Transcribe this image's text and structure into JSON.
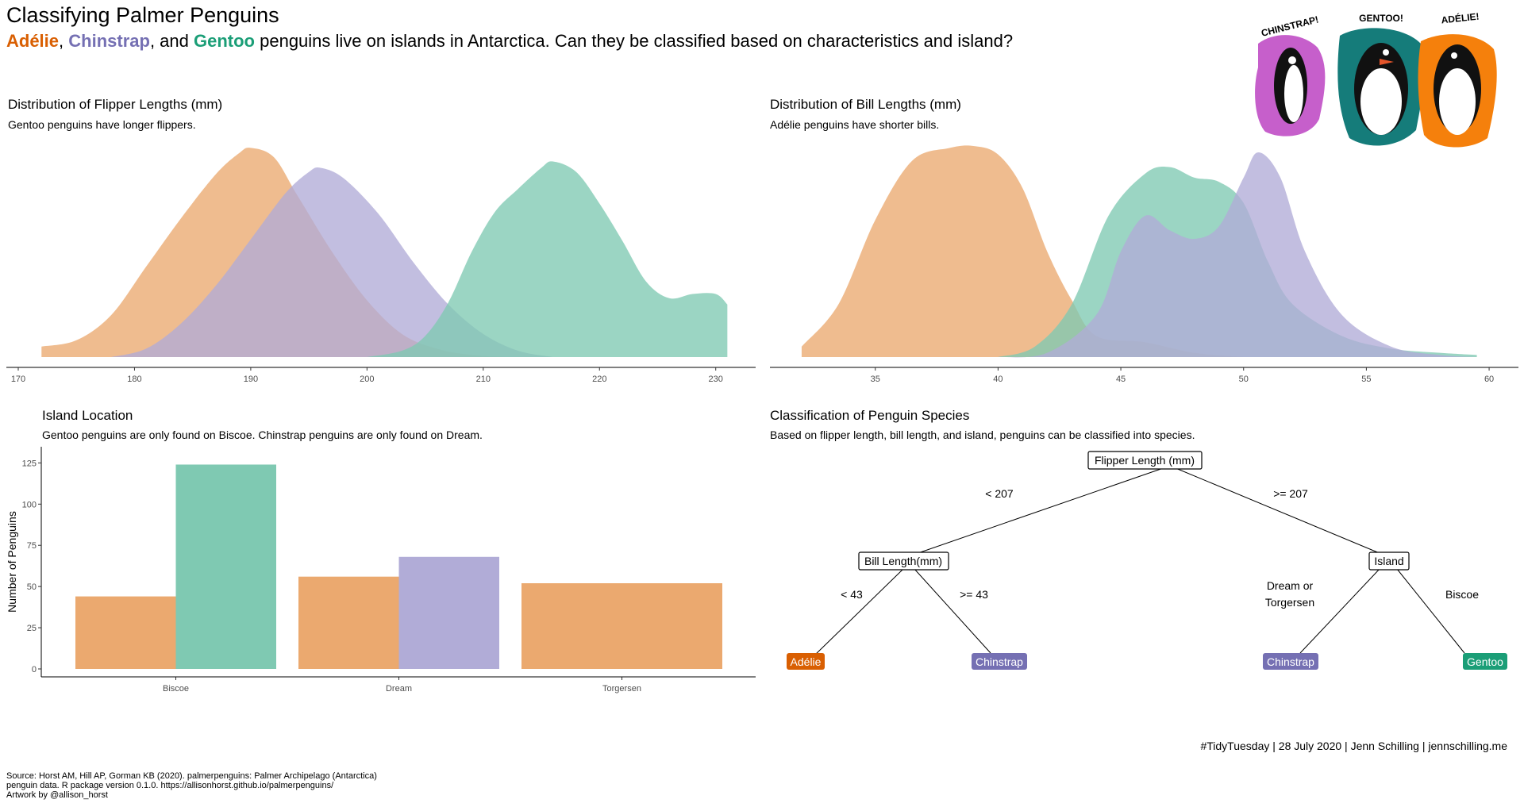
{
  "title": "Classifying Palmer Penguins",
  "subtitle": {
    "adelie": "Adélie",
    "sep1": ", ",
    "chinstrap": "Chinstrap",
    "sep2": ", and ",
    "gentoo": "Gentoo",
    "rest": " penguins live on islands in Antarctica. Can they be classified based on characteristics and island?"
  },
  "colors": {
    "adelie": "#d95f02",
    "chinstrap": "#7570b3",
    "gentoo": "#1b9e77",
    "adelie_fill": "#eba96f",
    "chinstrap_fill": "#b1acd7",
    "gentoo_fill": "#7fc9b2"
  },
  "artwork": {
    "labels": [
      "CHINSTRAP!",
      "GENTOO!",
      "ADÉLIE!"
    ]
  },
  "credit": "#TidyTuesday | 28 July 2020 | Jenn Schilling | jennschilling.me",
  "source": [
    "Source: Horst AM, Hill AP, Gorman KB (2020). palmerpenguins: Palmer Archipelago (Antarctica)",
    "penguin data. R package version 0.1.0. https://allisonhorst.github.io/palmerpenguins/",
    "Artwork by @allison_horst"
  ],
  "tree": {
    "title": "Classification of Penguin Species",
    "subtitle": "Based on flipper length, bill length, and island, penguins can be classified into species.",
    "root": "Flipper Length (mm)",
    "left_node": "Bill Length(mm)",
    "right_node": "Island",
    "edge_root_left": "< 207",
    "edge_root_right": ">= 207",
    "edge_left_left": "< 43",
    "edge_left_right": ">= 43",
    "edge_right_left_1": "Dream or",
    "edge_right_left_2": "Torgersen",
    "edge_right_right": "Biscoe",
    "leaf_1": "Adélie",
    "leaf_2": "Chinstrap",
    "leaf_3": "Chinstrap",
    "leaf_4": "Gentoo"
  },
  "chart_data": [
    {
      "type": "area",
      "title": "Distribution of Flipper Lengths (mm)",
      "subtitle": "Gentoo penguins have longer flippers.",
      "xlim": [
        170,
        232
      ],
      "ylim": [
        0,
        1
      ],
      "x_ticks": [
        170,
        180,
        190,
        200,
        210,
        220,
        230
      ],
      "series": [
        {
          "key": "adelie",
          "x": [
            172,
            175,
            178,
            181,
            184,
            187,
            189,
            190,
            192,
            194,
            197,
            200,
            203,
            206,
            209,
            212
          ],
          "values": [
            0.05,
            0.08,
            0.2,
            0.43,
            0.66,
            0.87,
            0.97,
            0.995,
            0.95,
            0.77,
            0.5,
            0.27,
            0.11,
            0.04,
            0.01,
            0
          ]
        },
        {
          "key": "chinstrap",
          "x": [
            178,
            181,
            184,
            187,
            190,
            193,
            195,
            196,
            198,
            201,
            204,
            207,
            210,
            213,
            216
          ],
          "values": [
            0,
            0.04,
            0.16,
            0.34,
            0.56,
            0.78,
            0.88,
            0.9,
            0.85,
            0.68,
            0.45,
            0.25,
            0.11,
            0.03,
            0
          ]
        },
        {
          "key": "gentoo",
          "x": [
            200,
            203,
            205,
            207,
            209,
            211,
            213,
            215,
            216,
            218,
            220,
            222,
            224,
            226,
            228,
            230,
            231
          ],
          "values": [
            0,
            0.03,
            0.1,
            0.26,
            0.5,
            0.69,
            0.8,
            0.9,
            0.93,
            0.88,
            0.73,
            0.55,
            0.36,
            0.28,
            0.3,
            0.3,
            0.25
          ]
        }
      ]
    },
    {
      "type": "area",
      "title": "Distribution of Bill Lengths (mm)",
      "subtitle": "Adélie penguins have shorter bills.",
      "xlim": [
        31,
        61
      ],
      "ylim": [
        0,
        1
      ],
      "x_ticks": [
        35,
        40,
        45,
        50,
        55,
        60
      ],
      "series": [
        {
          "key": "adelie",
          "x": [
            32,
            33.5,
            35,
            36.5,
            38,
            39,
            40,
            41,
            42,
            43,
            44,
            46,
            48,
            50
          ],
          "values": [
            0.05,
            0.25,
            0.65,
            0.93,
            0.99,
            1.0,
            0.96,
            0.8,
            0.5,
            0.27,
            0.1,
            0.07,
            0.02,
            0
          ]
        },
        {
          "key": "gentoo",
          "x": [
            40,
            41.5,
            43,
            44.5,
            46,
            47,
            48,
            49,
            50,
            51,
            52,
            54,
            56,
            58,
            59.5
          ],
          "values": [
            0,
            0.05,
            0.25,
            0.67,
            0.87,
            0.9,
            0.85,
            0.83,
            0.73,
            0.45,
            0.25,
            0.1,
            0.04,
            0.02,
            0.01
          ]
        },
        {
          "key": "chinstrap",
          "x": [
            40,
            42,
            44,
            45,
            46,
            47,
            48,
            49,
            50,
            50.6,
            51.5,
            52.5,
            54,
            56,
            58,
            59.5
          ],
          "values": [
            0,
            0.02,
            0.2,
            0.5,
            0.67,
            0.6,
            0.56,
            0.62,
            0.85,
            0.97,
            0.85,
            0.5,
            0.2,
            0.05,
            0.01,
            0
          ]
        }
      ]
    },
    {
      "type": "bar",
      "title": "Island Location",
      "subtitle": "Gentoo penguins are only found on Biscoe. Chinstrap penguins are only found on Dream.",
      "ylabel": "Number of Penguins",
      "ylim": [
        0,
        130
      ],
      "y_ticks": [
        0,
        25,
        50,
        75,
        100,
        125
      ],
      "categories": [
        "Biscoe",
        "Dream",
        "Torgersen"
      ],
      "bars": [
        {
          "category": "Biscoe",
          "key": "adelie",
          "value": 44
        },
        {
          "category": "Biscoe",
          "key": "gentoo",
          "value": 124
        },
        {
          "category": "Dream",
          "key": "adelie",
          "value": 56
        },
        {
          "category": "Dream",
          "key": "chinstrap",
          "value": 68
        },
        {
          "category": "Torgersen",
          "key": "adelie",
          "value": 52
        }
      ]
    }
  ]
}
